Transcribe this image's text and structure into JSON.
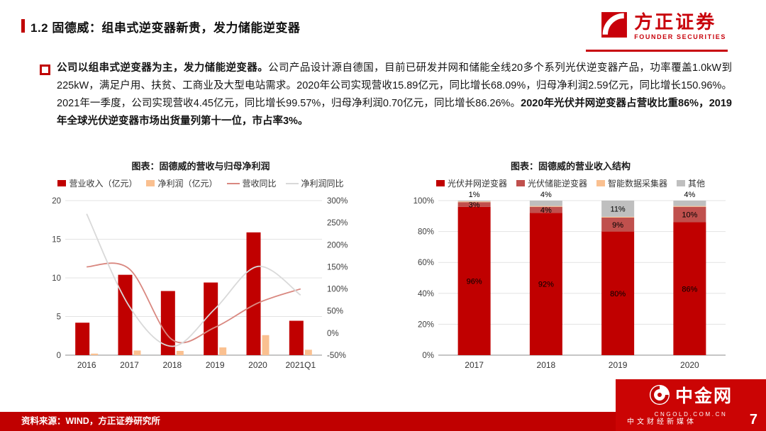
{
  "header": {
    "title": "1.2 固德威：组串式逆变器新贵，发力储能逆变器"
  },
  "logo": {
    "name": "方正证券",
    "subtitle": "FOUNDER SECURITIES"
  },
  "paragraph": {
    "segments": [
      {
        "text": "公司以组串式逆变器为主，发力储能逆变器。",
        "bold": true
      },
      {
        "text": "公司产品设计源自德国，目前已研发并网和储能全线20多个系列光伏逆变器产品，功率覆盖1.0kW到225kW，满足户用、扶贫、工商业及大型电站需求。2020年公司实现营收15.89亿元，同比增长68.09%，归母净利润2.59亿元，同比增长150.96%。2021年一季度，公司实现营收4.45亿元，同比增长99.57%，归母净利润0.70亿元，同比增长86.26%。",
        "bold": false
      },
      {
        "text": "2020年光伏并网逆变器占营收比重86%，2019年全球光伏逆变器市场出货量列第十一位，市占率3%。",
        "bold": true
      }
    ]
  },
  "chart_data": [
    {
      "type": "bar",
      "subtype": "bar+line-combo",
      "title": "图表：固德威的营收与归母净利润",
      "categories": [
        "2016",
        "2017",
        "2018",
        "2019",
        "2020",
        "2021Q1"
      ],
      "bar_series": [
        {
          "name": "营业收入（亿元）",
          "axis": "left",
          "color": "#c00000",
          "values": [
            4.2,
            10.4,
            8.3,
            9.4,
            15.89,
            4.45
          ]
        },
        {
          "name": "净利润（亿元）",
          "axis": "left",
          "color": "#fac090",
          "values": [
            0.2,
            0.6,
            0.55,
            1.0,
            2.59,
            0.7
          ]
        }
      ],
      "line_series": [
        {
          "name": "营收同比",
          "axis": "right",
          "color": "#d98880",
          "values": [
            150,
            145,
            -15,
            13,
            68,
            100
          ]
        },
        {
          "name": "净利润同比",
          "axis": "right",
          "color": "#d9d9d9",
          "values": [
            270,
            60,
            -30,
            55,
            151,
            86
          ]
        }
      ],
      "left_axis": {
        "min": 0,
        "max": 20,
        "ticks": [
          0,
          5,
          10,
          15,
          20
        ]
      },
      "right_axis": {
        "ticks": [
          "-50%",
          "0%",
          "50%",
          "100%",
          "150%",
          "200%",
          "250%",
          "300%"
        ]
      },
      "grid": true,
      "legend_position": "top"
    },
    {
      "type": "bar",
      "subtype": "stacked-100pct",
      "title": "图表：固德威的营业收入结构",
      "categories": [
        "2017",
        "2018",
        "2019",
        "2020"
      ],
      "series": [
        {
          "name": "光伏并网逆变器",
          "color": "#c00000",
          "values": [
            96,
            92,
            80,
            86
          ],
          "labels": [
            "96%",
            "92%",
            "80%",
            "86%"
          ]
        },
        {
          "name": "光伏储能逆变器",
          "color": "#c0504d",
          "values": [
            3,
            4,
            9,
            10
          ],
          "labels": [
            "3%",
            "4%",
            "9%",
            "10%"
          ]
        },
        {
          "name": "智能数据采集器",
          "color": "#fac090",
          "values": [
            0.5,
            0.5,
            0.5,
            0.5
          ],
          "labels": [
            "",
            "",
            "",
            ""
          ]
        },
        {
          "name": "其他",
          "color": "#bfbfbf",
          "values": [
            0.5,
            3.5,
            10.5,
            3.5
          ],
          "labels": [
            "1%",
            "4%",
            "11%",
            "4%"
          ]
        }
      ],
      "y_axis": {
        "ticks": [
          "0%",
          "20%",
          "40%",
          "60%",
          "80%",
          "100%"
        ]
      },
      "grid": true,
      "legend_position": "top"
    }
  ],
  "footer": {
    "source": "资料来源：WIND，方正证券研究所",
    "page_number": "7"
  },
  "brand": {
    "name": "中金网",
    "url": "CNGOLD.COM.CN",
    "tagline": "中文财经新媒体"
  },
  "colors": {
    "accent_red": "#c00000",
    "founder_red": "#c8000a",
    "revenue_bar": "#c00000",
    "profit_bar": "#fac090",
    "revenue_yoy_line": "#d98880",
    "profit_yoy_line": "#d9d9d9",
    "grid_inverter": "#c00000",
    "storage_inverter": "#c0504d",
    "data_collector": "#fac090",
    "other_segment": "#bfbfbf"
  }
}
